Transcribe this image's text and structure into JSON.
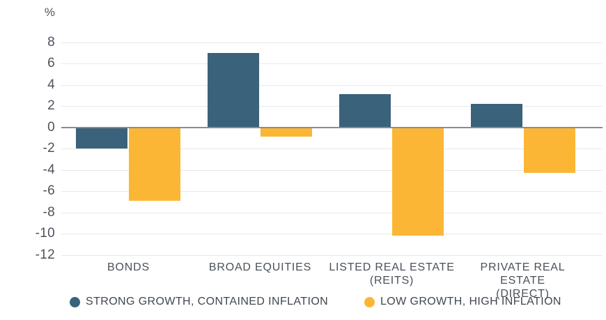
{
  "chart_data": {
    "type": "bar",
    "title": "",
    "y_axis_unit": "%",
    "categories": [
      "BONDS",
      "BROAD EQUITIES",
      "LISTED REAL ESTATE\n(REITS)",
      "PRIVATE REAL ESTATE\n(DIRECT)"
    ],
    "series": [
      {
        "name": "STRONG GROWTH, CONTAINED INFLATION",
        "color": "#3A627A",
        "values": [
          -2.0,
          7.0,
          3.1,
          2.2
        ]
      },
      {
        "name": "LOW GROWTH, HIGH INFLATION",
        "color": "#FCB635",
        "values": [
          -6.9,
          -0.9,
          -10.2,
          -4.3
        ]
      }
    ],
    "y_ticks": [
      8,
      6,
      4,
      2,
      0,
      -2,
      -4,
      -6,
      -8,
      -10,
      -12
    ],
    "ylim": [
      -12,
      8
    ],
    "grid": true,
    "legend_position": "bottom"
  },
  "colors": {
    "gridline": "#E8E8E8",
    "zero_axis": "#8C8C8C",
    "axis_text": "#4C535B",
    "category_text": "#4A5158",
    "legend_text": "#40474F",
    "background": "#FFFFFF"
  }
}
